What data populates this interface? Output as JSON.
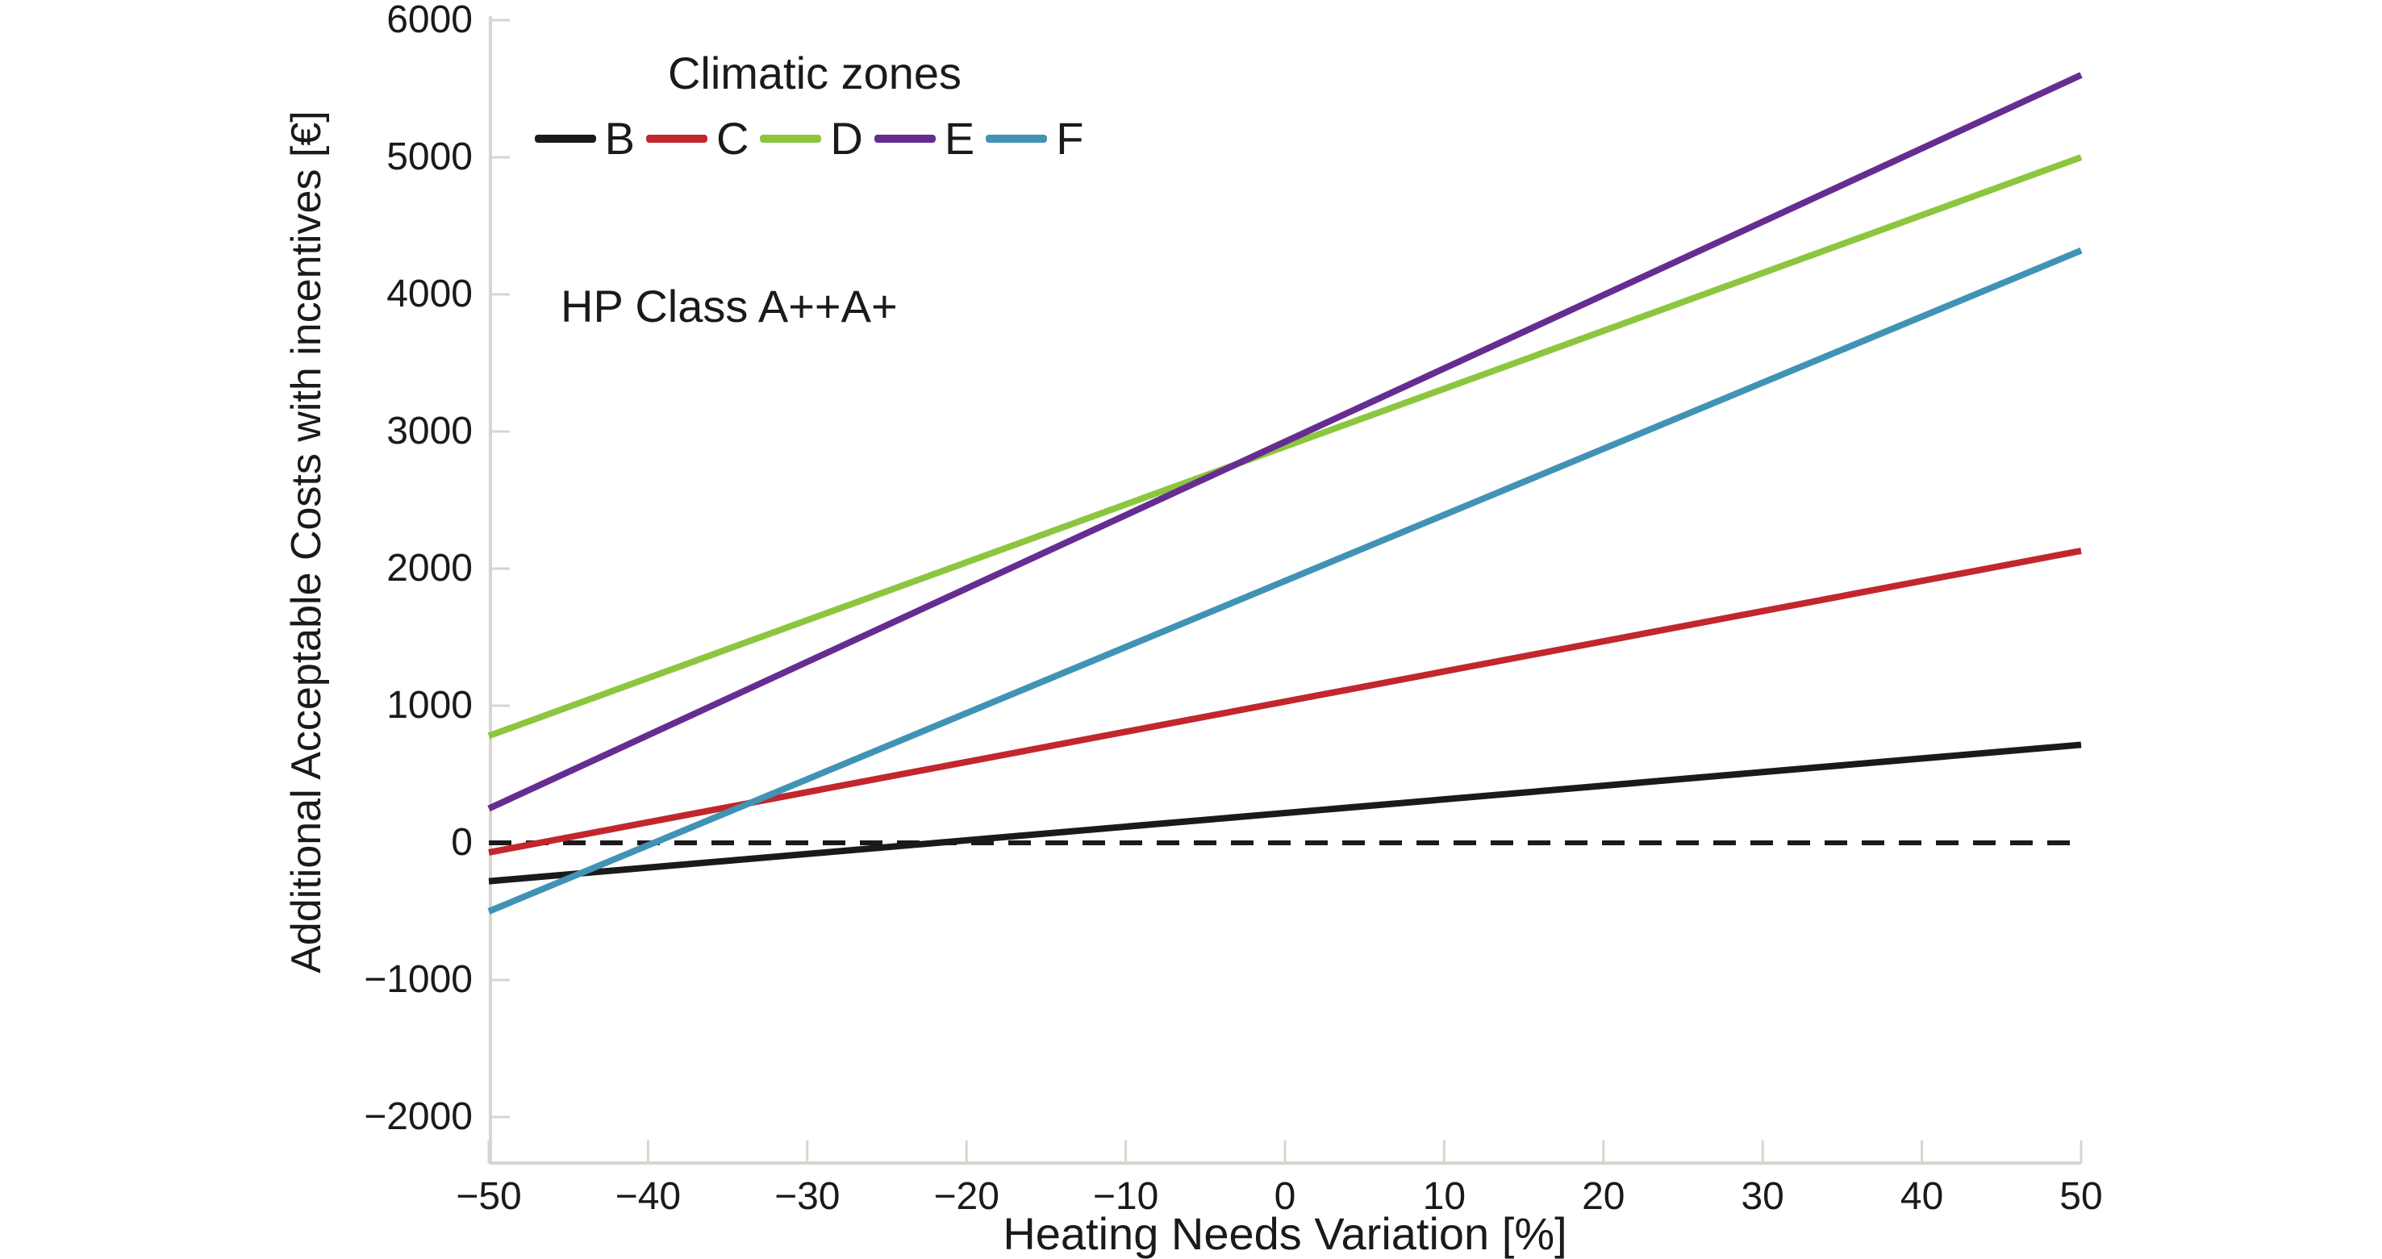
{
  "figure": {
    "background": "#ffffff",
    "text_color": "#1a1a1a",
    "axis_color": "#d9d4ce"
  },
  "chart_data": {
    "type": "line",
    "legend_title": "Climatic zones",
    "annotation": "HP Class A++A+",
    "xlabel": "Heating Needs Variation [%]",
    "ylabel": "Additional Acceptable Costs with incentives [€]",
    "x": [
      -50,
      50
    ],
    "series": [
      {
        "name": "B",
        "color": "#1a1a1a",
        "values": [
          -280,
          715
        ]
      },
      {
        "name": "C",
        "color": "#c1272d",
        "values": [
          -70,
          2130
        ]
      },
      {
        "name": "D",
        "color": "#8cc63f",
        "values": [
          780,
          5000
        ]
      },
      {
        "name": "E",
        "color": "#662d91",
        "values": [
          250,
          5600
        ]
      },
      {
        "name": "F",
        "color": "#4193b5",
        "values": [
          -500,
          4320
        ]
      }
    ],
    "xticks": [
      -50,
      -40,
      -30,
      -20,
      -10,
      0,
      10,
      20,
      30,
      40,
      50
    ],
    "yticks": [
      -2000,
      -1000,
      0,
      1000,
      2000,
      3000,
      4000,
      5000,
      6000
    ],
    "xlim": [
      -50,
      50
    ],
    "ylim": [
      -2350,
      6030
    ],
    "zero_line_y": 0,
    "grid": false,
    "legend_position": "top-left-inside"
  }
}
